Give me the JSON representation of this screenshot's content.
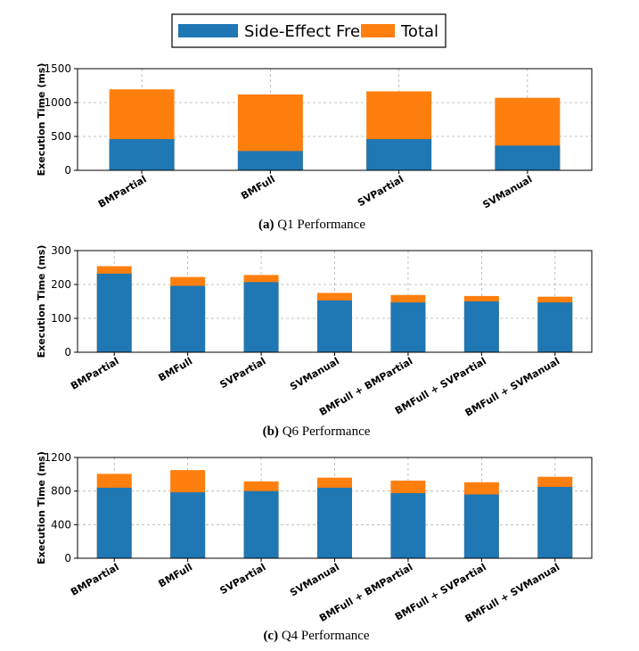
{
  "legend": [
    {
      "name": "Side-Effect Free",
      "color": "#1f77b4"
    },
    {
      "name": "Total",
      "color": "#ff7f0e"
    }
  ],
  "chart_data": [
    {
      "type": "bar",
      "stacked": true,
      "caption_tag": "(a)",
      "caption_text": "Q1 Performance",
      "ylabel": "Execution Time (ms)",
      "ylim": [
        0,
        1500
      ],
      "yticks": [
        0,
        500,
        1000,
        1500
      ],
      "grid": true,
      "categories": [
        "BMPartial",
        "BMFull",
        "SVPartial",
        "SVManual"
      ],
      "series": [
        {
          "name": "Side-Effect Free",
          "values": [
            460,
            285,
            460,
            365
          ]
        },
        {
          "name": "Total",
          "values": [
            1195,
            1120,
            1165,
            1070
          ]
        }
      ]
    },
    {
      "type": "bar",
      "stacked": true,
      "caption_tag": "(b)",
      "caption_text": "Q6 Performance",
      "ylabel": "Execution Time (ms)",
      "ylim": [
        0,
        300
      ],
      "yticks": [
        0,
        100,
        200,
        300
      ],
      "grid": true,
      "categories": [
        "BMPartial",
        "BMFull",
        "SVPartial",
        "SVManual",
        "BMFull + BMPartial",
        "BMFull + SVPartial",
        "BMFull + SVManual"
      ],
      "series": [
        {
          "name": "Side-Effect Free",
          "values": [
            232,
            196,
            207,
            153,
            147,
            150,
            147
          ]
        },
        {
          "name": "Total",
          "values": [
            254,
            222,
            228,
            175,
            169,
            166,
            164
          ]
        }
      ]
    },
    {
      "type": "bar",
      "stacked": true,
      "caption_tag": "(c)",
      "caption_text": "Q4 Performance",
      "ylabel": "Execution Time (ms)",
      "ylim": [
        0,
        1200
      ],
      "yticks": [
        0,
        400,
        800,
        1200
      ],
      "grid": true,
      "categories": [
        "BMPartial",
        "BMFull",
        "SVPartial",
        "SVManual",
        "BMFull + BMPartial",
        "BMFull + SVPartial",
        "BMFull + SVManual"
      ],
      "series": [
        {
          "name": "Side-Effect Free",
          "values": [
            840,
            785,
            800,
            840,
            775,
            760,
            850
          ]
        },
        {
          "name": "Total",
          "values": [
            1005,
            1050,
            915,
            960,
            925,
            905,
            970
          ]
        }
      ]
    }
  ]
}
